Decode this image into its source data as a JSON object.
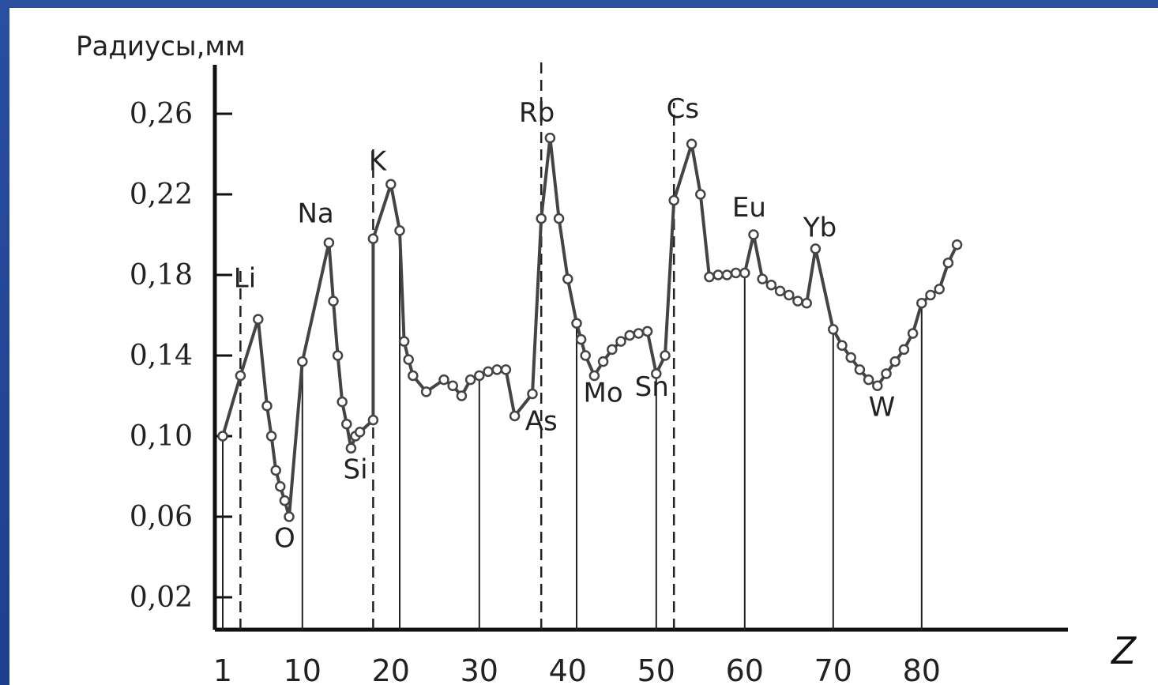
{
  "chart_data": {
    "type": "line",
    "title": "",
    "ylabel": "Радиусы,мм",
    "xlabel": "Z",
    "xlim": [
      0,
      84
    ],
    "ylim": [
      0,
      0.27
    ],
    "yticks": [
      {
        "value": 0.02,
        "label": "0,02"
      },
      {
        "value": 0.06,
        "label": "0,06"
      },
      {
        "value": 0.1,
        "label": "0,10"
      },
      {
        "value": 0.14,
        "label": "0,14"
      },
      {
        "value": 0.18,
        "label": "0,18"
      },
      {
        "value": 0.22,
        "label": "0,22"
      },
      {
        "value": 0.26,
        "label": "0,26"
      }
    ],
    "xticks": [
      {
        "value": 1,
        "label": "1"
      },
      {
        "value": 10,
        "label": "10"
      },
      {
        "value": 20,
        "label": "20"
      },
      {
        "value": 30,
        "label": "30"
      },
      {
        "value": 40,
        "label": "40"
      },
      {
        "value": 50,
        "label": "50"
      },
      {
        "value": 60,
        "label": "60"
      },
      {
        "value": 70,
        "label": "70"
      },
      {
        "value": 80,
        "label": "80"
      }
    ],
    "series": [
      {
        "points": [
          [
            1,
            0.1
          ],
          [
            3,
            0.13
          ],
          [
            5,
            0.158
          ],
          [
            6,
            0.115
          ],
          [
            6.5,
            0.1
          ],
          [
            7,
            0.083
          ],
          [
            7.5,
            0.075
          ],
          [
            8,
            0.068
          ],
          [
            8.5,
            0.06
          ],
          [
            10,
            0.137
          ],
          [
            13,
            0.196
          ],
          [
            13.5,
            0.167
          ],
          [
            14,
            0.14
          ],
          [
            14.5,
            0.117
          ],
          [
            15,
            0.106
          ],
          [
            15.5,
            0.094
          ],
          [
            16,
            0.1
          ],
          [
            16.5,
            0.102
          ],
          [
            18,
            0.108
          ],
          [
            18,
            0.198
          ],
          [
            20,
            0.225
          ],
          [
            21,
            0.202
          ],
          [
            21.5,
            0.147
          ],
          [
            22,
            0.138
          ],
          [
            22.5,
            0.13
          ],
          [
            24,
            0.122
          ],
          [
            26,
            0.128
          ],
          [
            27,
            0.125
          ],
          [
            28,
            0.12
          ],
          [
            29,
            0.128
          ],
          [
            30,
            0.13
          ],
          [
            31,
            0.132
          ],
          [
            32,
            0.133
          ],
          [
            33,
            0.133
          ],
          [
            34,
            0.11
          ],
          [
            36,
            0.121
          ],
          [
            37,
            0.208
          ],
          [
            38,
            0.248
          ],
          [
            39,
            0.208
          ],
          [
            40,
            0.178
          ],
          [
            41,
            0.156
          ],
          [
            41.5,
            0.148
          ],
          [
            42,
            0.14
          ],
          [
            43,
            0.13
          ],
          [
            44,
            0.137
          ],
          [
            45,
            0.143
          ],
          [
            46,
            0.147
          ],
          [
            47,
            0.15
          ],
          [
            48,
            0.151
          ],
          [
            49,
            0.152
          ],
          [
            50,
            0.131
          ],
          [
            51,
            0.14
          ],
          [
            52,
            0.217
          ],
          [
            54,
            0.245
          ],
          [
            55,
            0.22
          ],
          [
            56,
            0.179
          ],
          [
            57,
            0.18
          ],
          [
            58,
            0.18
          ],
          [
            59,
            0.181
          ],
          [
            60,
            0.181
          ],
          [
            61,
            0.2
          ],
          [
            62,
            0.178
          ],
          [
            63,
            0.175
          ],
          [
            64,
            0.172
          ],
          [
            65,
            0.17
          ],
          [
            66,
            0.167
          ],
          [
            67,
            0.166
          ],
          [
            68,
            0.193
          ],
          [
            70,
            0.153
          ],
          [
            71,
            0.145
          ],
          [
            72,
            0.139
          ],
          [
            73,
            0.133
          ],
          [
            74,
            0.128
          ],
          [
            75,
            0.125
          ],
          [
            76,
            0.131
          ],
          [
            77,
            0.137
          ],
          [
            78,
            0.143
          ],
          [
            79,
            0.151
          ],
          [
            80,
            0.166
          ],
          [
            81,
            0.17
          ],
          [
            82,
            0.173
          ],
          [
            83,
            0.186
          ],
          [
            84,
            0.195
          ]
        ]
      }
    ],
    "element_labels": [
      {
        "text": "Li",
        "z": 3.5,
        "y": 0.174
      },
      {
        "text": "O",
        "z": 8,
        "y": 0.045
      },
      {
        "text": "Na",
        "z": 11.5,
        "y": 0.206
      },
      {
        "text": "Si",
        "z": 16,
        "y": 0.079
      },
      {
        "text": "K",
        "z": 18.5,
        "y": 0.232
      },
      {
        "text": "Rb",
        "z": 36.5,
        "y": 0.256
      },
      {
        "text": "As",
        "z": 37,
        "y": 0.103
      },
      {
        "text": "Mo",
        "z": 44,
        "y": 0.117
      },
      {
        "text": "Sn",
        "z": 49.5,
        "y": 0.12
      },
      {
        "text": "Cs",
        "z": 53,
        "y": 0.258
      },
      {
        "text": "Eu",
        "z": 60.5,
        "y": 0.209
      },
      {
        "text": "Yb",
        "z": 68.5,
        "y": 0.199
      },
      {
        "text": "W",
        "z": 75.5,
        "y": 0.11
      }
    ],
    "dashed_verticals": [
      3,
      18,
      37,
      52
    ],
    "solid_verticals": [
      1,
      10,
      21,
      30,
      41,
      50,
      60,
      70,
      80
    ],
    "grid": false,
    "line_color": "#444444"
  }
}
